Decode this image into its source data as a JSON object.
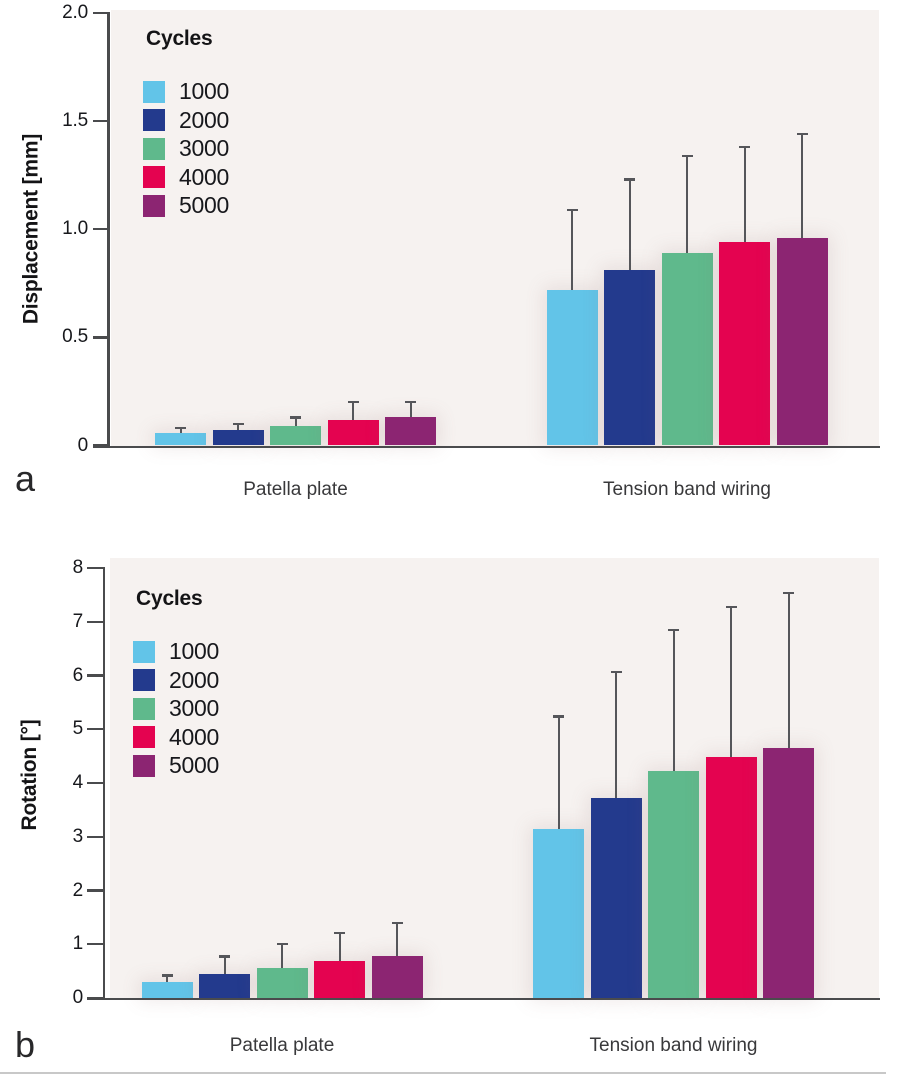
{
  "chart_data": [
    {
      "type": "bar",
      "panel_label": "a",
      "ylabel": "Displacement [mm]",
      "ylim": [
        0,
        2.0
      ],
      "ytick_values": [
        0,
        0.5,
        1.0,
        1.5,
        2.0
      ],
      "yticks": [
        "0",
        "0.5",
        "1.0",
        "1.5",
        "2.0"
      ],
      "categories": [
        "Patella plate",
        "Tension band wiring"
      ],
      "legend_title": "Cycles",
      "legend_position": "top-left",
      "grid": false,
      "plot_bg": "#f6f2f0",
      "axis_color": "#4a4b4d",
      "error_bar_color": "#55565a",
      "series": [
        {
          "name": "1000",
          "color": "#62c4e8",
          "values": [
            0.06,
            0.72
          ],
          "errors": [
            0.02,
            0.37
          ]
        },
        {
          "name": "2000",
          "color": "#233a8d",
          "values": [
            0.07,
            0.81
          ],
          "errors": [
            0.03,
            0.42
          ]
        },
        {
          "name": "3000",
          "color": "#5fb98c",
          "values": [
            0.09,
            0.89
          ],
          "errors": [
            0.04,
            0.45
          ]
        },
        {
          "name": "4000",
          "color": "#e40350",
          "values": [
            0.12,
            0.94
          ],
          "errors": [
            0.08,
            0.44
          ]
        },
        {
          "name": "5000",
          "color": "#8c2572",
          "values": [
            0.13,
            0.96
          ],
          "errors": [
            0.07,
            0.48
          ]
        }
      ]
    },
    {
      "type": "bar",
      "panel_label": "b",
      "ylabel": "Rotation [°]",
      "ylim": [
        0,
        8
      ],
      "ytick_values": [
        0,
        1,
        2,
        3,
        4,
        5,
        6,
        7,
        8
      ],
      "yticks": [
        "0",
        "1",
        "2",
        "3",
        "4",
        "5",
        "6",
        "7",
        "8"
      ],
      "categories": [
        "Patella plate",
        "Tension band wiring"
      ],
      "legend_title": "Cycles",
      "legend_position": "top-left",
      "grid": false,
      "plot_bg": "#f6f2f0",
      "axis_color": "#4a4b4d",
      "error_bar_color": "#55565a",
      "series": [
        {
          "name": "1000",
          "color": "#62c4e8",
          "values": [
            0.29,
            3.14
          ],
          "errors": [
            0.13,
            2.1
          ]
        },
        {
          "name": "2000",
          "color": "#233a8d",
          "values": [
            0.44,
            3.72
          ],
          "errors": [
            0.33,
            2.34
          ]
        },
        {
          "name": "3000",
          "color": "#5fb98c",
          "values": [
            0.55,
            4.23
          ],
          "errors": [
            0.46,
            2.62
          ]
        },
        {
          "name": "4000",
          "color": "#e40350",
          "values": [
            0.68,
            4.49
          ],
          "errors": [
            0.53,
            2.79
          ]
        },
        {
          "name": "5000",
          "color": "#8c2572",
          "values": [
            0.78,
            4.65
          ],
          "errors": [
            0.62,
            2.88
          ]
        }
      ]
    }
  ]
}
